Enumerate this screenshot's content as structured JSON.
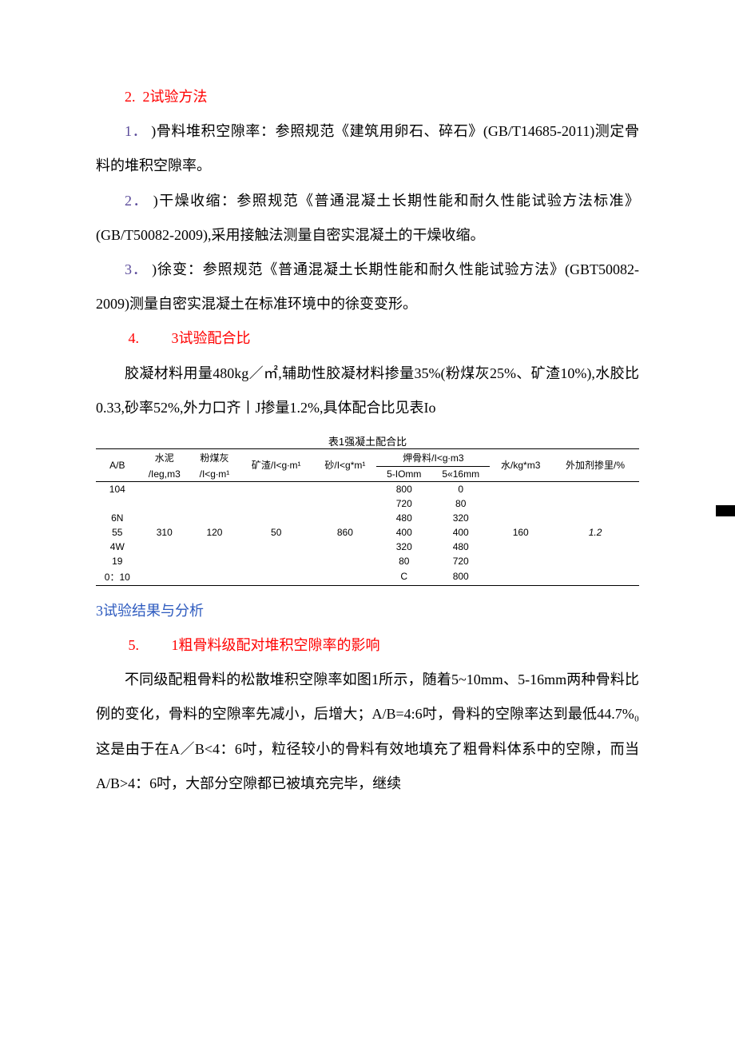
{
  "s22": {
    "heading_num": "2.",
    "heading_text": "2试验方法",
    "item1_num": "1．",
    "item1_text": ")骨料堆积空隙率：参照规范《建筑用卵石、碎石》(GB/T14685-2011)测定骨料的堆积空隙率。",
    "item2_num": "2．",
    "item2_text": ")干燥收缩：参照规范《普通混凝土长期性能和耐久性能试验方法标准》(GB/T50082-2009),采用接触法测量自密实混凝土的干燥收缩。",
    "item3_num": "3．",
    "item3_text": ")徐变：参照规范《普通混凝土长期性能和耐久性能试验方法》(GBT50082-2009)测量自密实混凝土在标准环境中的徐变变形。"
  },
  "s23": {
    "heading_num": "4.",
    "heading_text": "3试验配合比",
    "para": "胶凝材料用量480kg／㎡,辅助性胶凝材料掺量35%(粉煤灰25%、矿渣10%),水胶比0.33,砂率52%,外力口齐丨J掺量1.2%,具体配合比见表Io"
  },
  "table1": {
    "title": "表1强凝土配合比",
    "headers": {
      "c1": "A/B",
      "c2a": "水泥",
      "c2b": "/Ieg,m3",
      "c3a": "粉煤灰",
      "c3b": "/I<g∙m¹",
      "c4": "矿渣/I<g∙m¹",
      "c5": "砂/I<g*m¹",
      "c6group": "炠骨料/I<g∙m3",
      "c6a": "5-IOmm",
      "c6b": "5«16mm",
      "c7": "水/kg*m3",
      "c8": "外加剂掺里/%"
    },
    "rows": [
      {
        "ab": "104",
        "cement": "",
        "fly": "",
        "slag": "",
        "sand": "",
        "a5_10": "800",
        "a5_16": "0",
        "water": "",
        "admix": ""
      },
      {
        "ab": "",
        "cement": "",
        "fly": "",
        "slag": "",
        "sand": "",
        "a5_10": "720",
        "a5_16": "80",
        "water": "",
        "admix": ""
      },
      {
        "ab": "6N",
        "cement": "",
        "fly": "",
        "slag": "",
        "sand": "",
        "a5_10": "480",
        "a5_16": "320",
        "water": "",
        "admix": ""
      },
      {
        "ab": "55",
        "cement": "310",
        "fly": "120",
        "slag": "50",
        "sand": "860",
        "a5_10": "400",
        "a5_16": "400",
        "water": "160",
        "admix": "1.2",
        "admix_italic": true
      },
      {
        "ab": "4W",
        "cement": "",
        "fly": "",
        "slag": "",
        "sand": "",
        "a5_10": "320",
        "a5_16": "480",
        "water": "",
        "admix": ""
      },
      {
        "ab": "19",
        "cement": "",
        "fly": "",
        "slag": "",
        "sand": "",
        "a5_10": "80",
        "a5_16": "720",
        "water": "",
        "admix": ""
      },
      {
        "ab": "0：10",
        "cement": "",
        "fly": "",
        "slag": "",
        "sand": "",
        "a5_10": "C",
        "a5_16": "800",
        "water": "",
        "admix": ""
      }
    ]
  },
  "h3": "3试验结果与分析",
  "s31": {
    "heading_num": "5.",
    "heading_text": "1粗骨料级配对堆积空隙率的影响",
    "para": "不同级配粗骨料的松散堆积空隙率如图1所示，随着5~10mm、5-16mm两种骨料比例的变化，骨料的空隙率先减小，后增大；A/B=4:6吋，骨料的空隙率达到最低44.7%₀这是由于在A／B<4：6吋，粒径较小的骨料有效地填充了粗骨料体系中的空隙，而当A/B>4：6吋，大部分空隙都已被填充完毕，继续"
  }
}
